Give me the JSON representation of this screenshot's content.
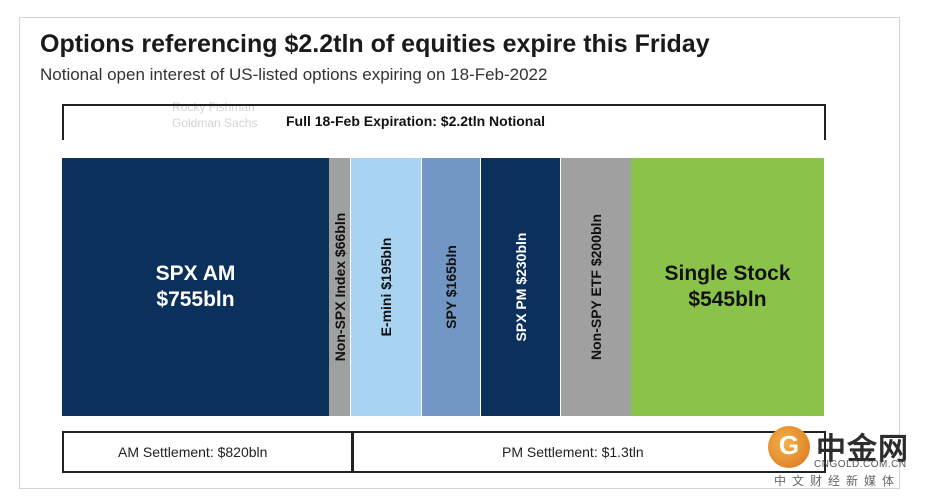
{
  "title": "Options referencing $2.2tln of equities expire this Friday",
  "subtitle": "Notional open interest of US-listed options expiring on 18-Feb-2022",
  "watermark": {
    "line1": "Rocky Fishman",
    "line2": "Goldman Sachs"
  },
  "chart_data": {
    "type": "bar",
    "orientation": "stacked-horizontal",
    "total_label": "Full 18-Feb Expiration: $2.2tln Notional",
    "unit": "bln",
    "segments": [
      {
        "name": "SPX AM",
        "label": "SPX AM",
        "value_text": "$755bln",
        "value": 755,
        "color": "#0b305c",
        "text_color": "#ffffff",
        "orientation": "horizontal"
      },
      {
        "name": "Non-SPX Index",
        "label": "Non-SPX Index $66bln",
        "value": 66,
        "color": "#9fa0a0",
        "text_color": "#111111",
        "orientation": "vertical"
      },
      {
        "name": "E-mini",
        "label": "E-mini $195bln",
        "value": 195,
        "color": "#a8d3f1",
        "text_color": "#111111",
        "orientation": "vertical"
      },
      {
        "name": "SPY",
        "label": "SPY $165bln",
        "value": 165,
        "color": "#7397c4",
        "text_color": "#111111",
        "orientation": "vertical"
      },
      {
        "name": "SPX PM",
        "label": "SPX PM $230bln",
        "value": 230,
        "color": "#0b305c",
        "text_color": "#ffffff",
        "orientation": "vertical"
      },
      {
        "name": "Non-SPY ETF",
        "label": "Non-SPY ETF $200bln",
        "value": 200,
        "color": "#a0a0a0",
        "text_color": "#111111",
        "orientation": "vertical"
      },
      {
        "name": "Single Stock",
        "label": "Single Stock",
        "value_text": "$545bln",
        "value": 545,
        "color": "#8bc34a",
        "text_color": "#111111",
        "orientation": "horizontal"
      }
    ],
    "groups": [
      {
        "label": "AM Settlement: $820bln",
        "from": 0,
        "to": 1
      },
      {
        "label": "PM Settlement: $1.3tln",
        "from": 2,
        "to": 6
      }
    ]
  },
  "logo": {
    "name": "中金网",
    "url": "CNGOLD.COM.CN",
    "tagline": "中文财经新媒体",
    "glyph": "G"
  }
}
